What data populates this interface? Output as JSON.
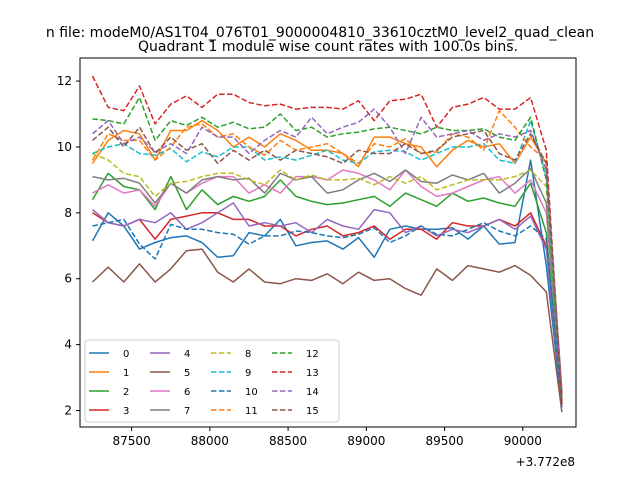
{
  "chart_data": {
    "type": "line",
    "suptitle": "n file: modeM0/AS1T04_076T01_9000004810_33610cztM0_level2_quad_clean",
    "title": "Quadrant 1 module wise count rates with 100.0s bins.",
    "xlabel": "",
    "ylabel": "",
    "x_offset_label": "+3.772e8",
    "xlim": [
      87170,
      90340
    ],
    "ylim": [
      1.5,
      12.7
    ],
    "xticks": [
      87500,
      88000,
      88500,
      89000,
      89500,
      90000
    ],
    "yticks": [
      2,
      4,
      6,
      8,
      10,
      12
    ],
    "grid": false,
    "legend_position": "lower-left",
    "x": [
      87250,
      87350,
      87450,
      87550,
      87650,
      87750,
      87850,
      87950,
      88050,
      88150,
      88250,
      88350,
      88450,
      88550,
      88650,
      88750,
      88850,
      88950,
      89050,
      89150,
      89250,
      89350,
      89450,
      89550,
      89650,
      89750,
      89850,
      89950,
      90050,
      90150,
      90250
    ],
    "series": [
      {
        "name": "0",
        "color": "#1f77b4",
        "dashed": false,
        "values": [
          7.15,
          8.0,
          7.6,
          6.9,
          7.1,
          7.25,
          7.3,
          7.1,
          6.65,
          6.7,
          7.4,
          7.3,
          7.8,
          7.0,
          7.1,
          7.15,
          6.9,
          7.25,
          6.65,
          7.5,
          7.6,
          7.5,
          7.5,
          7.55,
          7.2,
          7.6,
          7.05,
          7.1,
          9.6,
          6.4,
          2.1
        ]
      },
      {
        "name": "1",
        "color": "#ff7f0e",
        "dashed": false,
        "values": [
          9.5,
          10.2,
          10.5,
          10.4,
          9.6,
          10.5,
          10.5,
          10.8,
          10.5,
          10.0,
          10.3,
          10.0,
          10.4,
          10.2,
          9.9,
          9.9,
          9.8,
          9.4,
          10.3,
          10.3,
          10.1,
          10.0,
          9.4,
          9.9,
          10.2,
          10.0,
          10.1,
          9.5,
          10.3,
          9.5,
          2.3
        ]
      },
      {
        "name": "2",
        "color": "#2ca02c",
        "dashed": false,
        "values": [
          8.4,
          9.2,
          8.8,
          8.7,
          8.1,
          9.1,
          8.1,
          8.7,
          8.25,
          8.5,
          8.35,
          8.5,
          9.0,
          8.5,
          8.35,
          8.25,
          8.3,
          8.4,
          8.5,
          8.2,
          8.6,
          8.4,
          8.2,
          8.6,
          8.35,
          8.45,
          8.3,
          8.2,
          8.9,
          7.4,
          2.2
        ]
      },
      {
        "name": "3",
        "color": "#d62728",
        "dashed": false,
        "values": [
          8.0,
          7.7,
          7.6,
          7.8,
          7.2,
          7.8,
          7.9,
          8.0,
          8.0,
          7.8,
          7.8,
          7.6,
          7.6,
          7.3,
          7.5,
          7.6,
          7.3,
          7.4,
          7.6,
          7.2,
          7.5,
          7.5,
          7.2,
          7.7,
          7.6,
          7.6,
          7.8,
          7.6,
          8.0,
          7.0,
          2.2
        ]
      },
      {
        "name": "4",
        "color": "#9467bd",
        "dashed": false,
        "values": [
          8.1,
          7.7,
          7.6,
          7.8,
          7.7,
          8.0,
          7.5,
          7.7,
          8.0,
          8.3,
          7.6,
          7.7,
          7.6,
          7.7,
          7.4,
          7.8,
          7.6,
          7.5,
          8.1,
          8.0,
          7.4,
          7.6,
          7.3,
          7.5,
          7.4,
          7.6,
          7.8,
          7.5,
          7.9,
          6.9,
          2.2
        ]
      },
      {
        "name": "5",
        "color": "#8c564b",
        "dashed": false,
        "values": [
          5.9,
          6.35,
          5.9,
          6.45,
          5.9,
          6.3,
          6.85,
          6.9,
          6.2,
          5.9,
          6.3,
          5.9,
          5.85,
          6.0,
          5.95,
          6.15,
          5.85,
          6.2,
          5.95,
          6.0,
          5.7,
          5.5,
          6.3,
          5.95,
          6.4,
          6.3,
          6.2,
          6.4,
          6.1,
          5.6,
          1.95
        ]
      },
      {
        "name": "6",
        "color": "#e377c2",
        "dashed": false,
        "values": [
          8.6,
          8.85,
          8.6,
          8.7,
          8.2,
          8.9,
          8.6,
          8.9,
          9.1,
          9.1,
          8.6,
          8.85,
          8.6,
          9.1,
          9.1,
          9.0,
          9.3,
          9.2,
          9.0,
          8.7,
          9.3,
          8.8,
          8.5,
          8.6,
          8.8,
          9.0,
          9.1,
          8.6,
          9.0,
          8.0,
          2.5
        ]
      },
      {
        "name": "7",
        "color": "#7f7f7f",
        "dashed": false,
        "values": [
          9.1,
          9.0,
          9.05,
          8.9,
          8.3,
          8.9,
          8.6,
          9.0,
          9.1,
          9.0,
          9.05,
          8.6,
          9.2,
          9.0,
          9.1,
          8.6,
          8.7,
          9.0,
          9.2,
          8.95,
          9.3,
          8.95,
          8.9,
          9.15,
          9.0,
          9.2,
          8.6,
          8.9,
          9.35,
          8.3,
          2.3
        ]
      },
      {
        "name": "8",
        "color": "#bcbd22",
        "dashed": true,
        "values": [
          9.8,
          9.6,
          9.2,
          9.1,
          8.5,
          8.9,
          8.95,
          9.1,
          9.2,
          9.2,
          9.0,
          8.85,
          9.3,
          9.0,
          9.15,
          9.0,
          9.0,
          9.05,
          8.85,
          9.1,
          8.9,
          9.1,
          8.7,
          8.85,
          9.0,
          9.0,
          9.0,
          9.1,
          9.3,
          8.8,
          2.4
        ]
      },
      {
        "name": "9",
        "color": "#17becf",
        "dashed": true,
        "values": [
          9.8,
          10.0,
          10.1,
          9.8,
          9.75,
          9.95,
          9.55,
          9.85,
          9.7,
          10.0,
          10.0,
          9.6,
          9.7,
          9.6,
          9.75,
          9.9,
          9.6,
          9.5,
          9.85,
          9.9,
          9.85,
          9.6,
          9.8,
          10.0,
          10.0,
          10.1,
          9.6,
          9.5,
          10.8,
          9.1,
          2.5
        ]
      },
      {
        "name": "10",
        "color": "#1f77b4",
        "dashed": true,
        "values": [
          7.6,
          7.7,
          7.8,
          7.05,
          6.6,
          7.65,
          7.5,
          7.5,
          7.4,
          7.35,
          7.05,
          7.3,
          7.3,
          7.45,
          7.4,
          7.3,
          7.25,
          7.35,
          7.55,
          7.1,
          7.3,
          7.6,
          7.35,
          7.3,
          7.5,
          7.7,
          7.45,
          7.3,
          7.6,
          7.2,
          2.2
        ]
      },
      {
        "name": "11",
        "color": "#ff7f0e",
        "dashed": true,
        "values": [
          9.6,
          10.4,
          10.2,
          10.2,
          9.6,
          10.0,
          10.6,
          10.7,
          10.3,
          10.4,
          10.0,
          9.75,
          10.2,
          9.9,
          10.0,
          10.1,
          9.8,
          9.5,
          10.1,
          10.0,
          10.25,
          9.8,
          9.85,
          10.4,
          10.3,
          9.9,
          11.1,
          10.6,
          10.0,
          9.6,
          2.4
        ]
      },
      {
        "name": "12",
        "color": "#2ca02c",
        "dashed": true,
        "values": [
          10.85,
          10.8,
          10.7,
          11.5,
          10.2,
          10.8,
          10.65,
          10.9,
          10.6,
          10.75,
          10.55,
          10.6,
          11.0,
          10.5,
          10.6,
          10.3,
          10.4,
          10.45,
          10.55,
          10.6,
          10.5,
          10.4,
          10.6,
          10.5,
          10.5,
          10.55,
          10.3,
          10.2,
          10.9,
          9.0,
          2.3
        ]
      },
      {
        "name": "13",
        "color": "#d62728",
        "dashed": true,
        "values": [
          12.15,
          11.2,
          11.1,
          11.85,
          10.7,
          11.3,
          11.55,
          11.2,
          11.6,
          11.6,
          11.35,
          11.25,
          11.3,
          11.15,
          11.2,
          11.2,
          11.15,
          11.4,
          10.8,
          11.4,
          11.45,
          11.6,
          10.6,
          11.2,
          11.3,
          11.5,
          11.15,
          11.15,
          11.5,
          9.9,
          2.2
        ]
      },
      {
        "name": "14",
        "color": "#9467bd",
        "dashed": true,
        "values": [
          10.4,
          10.8,
          10.1,
          10.3,
          9.85,
          10.1,
          9.8,
          10.6,
          10.3,
          10.3,
          9.8,
          10.2,
          10.5,
          10.3,
          10.9,
          10.4,
          10.6,
          10.75,
          11.15,
          10.6,
          9.8,
          10.9,
          10.3,
          10.4,
          10.5,
          10.2,
          10.4,
          10.3,
          10.5,
          9.3,
          2.6
        ]
      },
      {
        "name": "15",
        "color": "#8c564b",
        "dashed": true,
        "values": [
          10.2,
          10.6,
          10.0,
          10.6,
          9.8,
          10.3,
          9.9,
          10.1,
          9.5,
          9.9,
          9.6,
          9.9,
          9.6,
          9.9,
          9.8,
          9.7,
          9.5,
          9.9,
          9.8,
          9.8,
          10.1,
          9.8,
          9.9,
          10.3,
          10.4,
          10.5,
          9.8,
          9.6,
          10.4,
          9.5,
          2.5
        ]
      }
    ]
  }
}
